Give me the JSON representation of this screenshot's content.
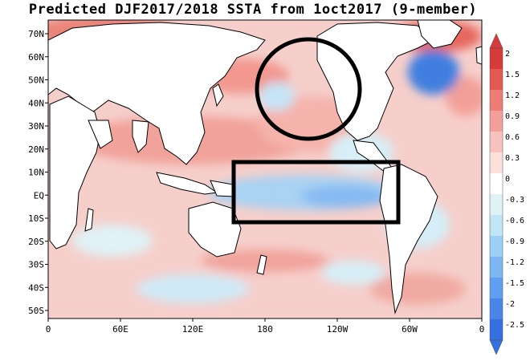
{
  "title": "Predicted DJF2017/2018 SSTA from 1oct2017 (9-member)",
  "lat_labels": [
    "70N",
    "60N",
    "50N",
    "40N",
    "30N",
    "20N",
    "10N",
    "EQ",
    "10S",
    "20S",
    "30S",
    "40S",
    "50S"
  ],
  "lon_labels": [
    "0",
    "60E",
    "120E",
    "180",
    "120W",
    "60W",
    "0"
  ],
  "colorbar": {
    "labels": [
      "2",
      "1.5",
      "1.2",
      "0.9",
      "0.6",
      "0.3",
      "0",
      "-0.3",
      "-0.6",
      "-0.9",
      "-1.2",
      "-1.5",
      "-2",
      "-2.5"
    ],
    "colors": [
      "#d73a3a",
      "#e35a55",
      "#ee7d76",
      "#f3a09a",
      "#f8c3be",
      "#fbe0dc",
      "#ffffff",
      "#dff3f7",
      "#c0e6f5",
      "#9cd0f7",
      "#7cb7f3",
      "#5f9ef0",
      "#4a86e8",
      "#3470df"
    ]
  },
  "annotations": {
    "circle": "North Pacific warm blob",
    "box": "Nino region"
  }
}
